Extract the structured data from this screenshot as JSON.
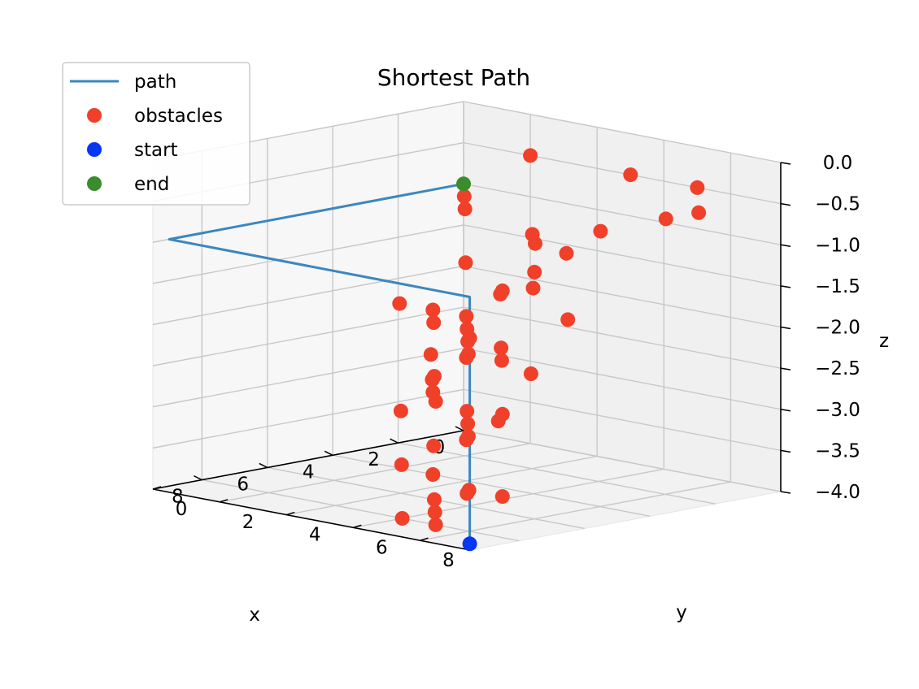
{
  "chart_data": {
    "type": "scatter",
    "projection": "3d",
    "title": "Shortest Path",
    "xlabel": "x",
    "ylabel": "y",
    "zlabel": "z",
    "xlim": [
      0,
      9.5
    ],
    "ylim": [
      0,
      9.5
    ],
    "zlim": [
      -4,
      0
    ],
    "xticks": [
      0,
      2,
      4,
      6,
      8
    ],
    "yticks": [
      0,
      2,
      4,
      6,
      8
    ],
    "zticks": [
      0,
      -0.5,
      -1,
      -1.5,
      -2,
      -2.5,
      -3,
      -3.5,
      -4
    ],
    "xtick_labels": [
      "0",
      "2",
      "4",
      "6",
      "8"
    ],
    "ytick_labels": [
      "0",
      "2",
      "4",
      "6",
      "8"
    ],
    "ztick_labels": [
      "0.0",
      "−0.5",
      "−1.0",
      "−1.5",
      "−2.0",
      "−2.5",
      "−3.0",
      "−3.5",
      "−4.0"
    ],
    "grid": true,
    "legend_position": "top-left",
    "colors": {
      "path": "#3b87bf",
      "obstacles": "#f0402a",
      "start": "#0535f5",
      "end": "#3a8c2c"
    },
    "legend": [
      "path",
      "obstacles",
      "start",
      "end"
    ],
    "series": [
      {
        "name": "path",
        "kind": "line",
        "points": [
          [
            9,
            9,
            -4
          ],
          [
            9,
            9,
            -1
          ],
          [
            9,
            0,
            -1
          ],
          [
            0,
            0,
            -1
          ]
        ]
      },
      {
        "name": "obstacles",
        "kind": "scatter",
        "points": [
          [
            0,
            2,
            -0.5
          ],
          [
            0,
            5,
            -0.5
          ],
          [
            0,
            7,
            -0.5
          ],
          [
            2,
            9,
            -0.5
          ],
          [
            3,
            9,
            -0.5
          ],
          [
            5,
            9,
            -0.5
          ],
          [
            7,
            9,
            -0.5
          ],
          [
            1,
            1,
            -1
          ],
          [
            2,
            2,
            -1
          ],
          [
            3,
            5,
            -1
          ],
          [
            4,
            7,
            -1
          ],
          [
            6,
            8,
            -1
          ],
          [
            8,
            9,
            -1
          ],
          [
            3,
            3,
            -1.5
          ],
          [
            4,
            6,
            -1.5
          ],
          [
            5,
            6,
            -1.5
          ],
          [
            6,
            9,
            -1.5
          ],
          [
            9,
            9,
            -1.5
          ],
          [
            4,
            2,
            -2
          ],
          [
            4,
            3,
            -2
          ],
          [
            5,
            5,
            -2
          ],
          [
            6,
            7,
            -2
          ],
          [
            7,
            7,
            -2
          ],
          [
            4,
            4,
            -2
          ],
          [
            5,
            4,
            -2
          ],
          [
            6,
            6,
            -2
          ],
          [
            7,
            8,
            -2
          ],
          [
            4,
            4,
            -2.5
          ],
          [
            6,
            5,
            -2.5
          ],
          [
            8,
            7,
            -2.5
          ],
          [
            8,
            9,
            -2.5
          ],
          [
            3,
            2,
            -3
          ],
          [
            4,
            3,
            -3
          ],
          [
            5,
            5,
            -3
          ],
          [
            6,
            6,
            -3
          ],
          [
            7,
            7,
            -3
          ],
          [
            1,
            3,
            -3
          ],
          [
            1,
            0,
            -3
          ],
          [
            8,
            8,
            -3.5
          ],
          [
            8,
            9,
            -3.5
          ],
          [
            2,
            3,
            -3.5
          ],
          [
            5,
            4,
            -3.5
          ],
          [
            7,
            5,
            -3.5
          ],
          [
            4,
            4,
            -3.5
          ],
          [
            3,
            2,
            -3
          ],
          [
            6,
            4,
            -3
          ],
          [
            5,
            5,
            -4
          ],
          [
            7,
            6,
            -4
          ],
          [
            8,
            6,
            -4
          ],
          [
            6,
            5,
            -4
          ],
          [
            8,
            7,
            -4
          ],
          [
            4,
            3,
            -4
          ]
        ]
      },
      {
        "name": "start",
        "kind": "scatter",
        "points": [
          [
            9,
            9,
            -4
          ]
        ]
      },
      {
        "name": "end",
        "kind": "scatter",
        "points": [
          [
            0,
            0,
            -1
          ]
        ]
      }
    ]
  }
}
